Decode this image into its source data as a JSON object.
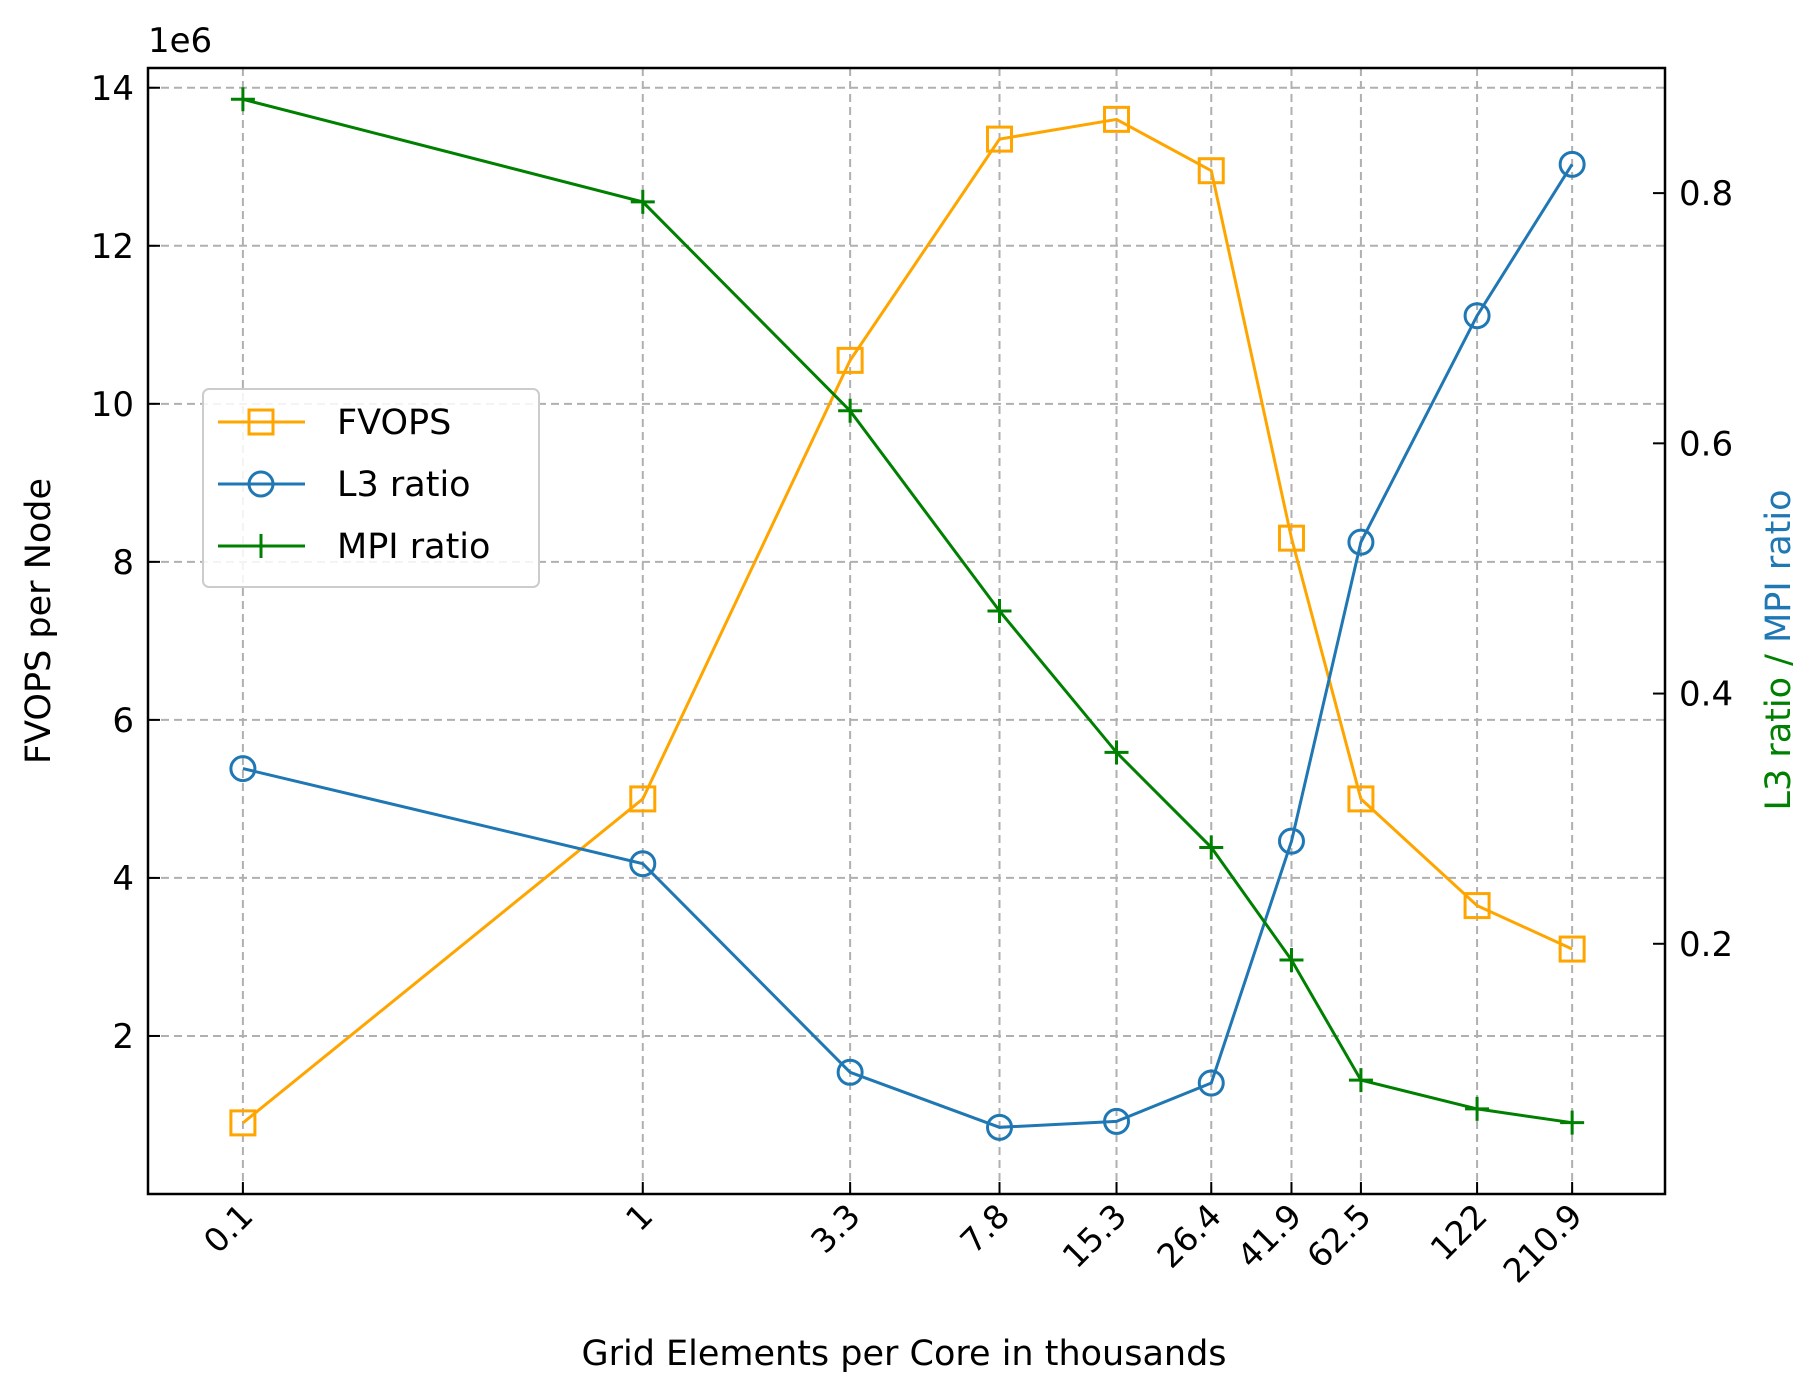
{
  "chart_data": {
    "type": "line",
    "xlabel": "Grid Elements per Core in thousands",
    "ylabel_left": "FVOPS per Node",
    "ylabel_right_part1": "L3 ratio / ",
    "ylabel_right_part2": " MPI ratio",
    "left_axis_multiplier": "1e6",
    "categories": [
      "0.1",
      "1",
      "3.3",
      "7.8",
      "15.3",
      "26.4",
      "41.9",
      "62.5",
      "122",
      "210.9"
    ],
    "x": [
      0.1,
      1,
      3.3,
      7.8,
      15.3,
      26.4,
      41.9,
      62.5,
      122,
      210.9
    ],
    "x_scale": "log",
    "x_range": [
      0.0579,
      360
    ],
    "y_left_range": [
      0,
      14.25
    ],
    "y_left_ticks": [
      2,
      4,
      6,
      8,
      10,
      12,
      14
    ],
    "y_right_range": [
      0.0,
      0.9
    ],
    "y_right_ticks": [
      "0.2",
      "0.4",
      "0.6",
      "0.8"
    ],
    "grid": true,
    "legend_position": "center-left",
    "series": [
      {
        "name": "FVOPS",
        "axis": "left",
        "color": "#ffa500",
        "marker": "square",
        "values": [
          0.9,
          5.0,
          10.55,
          13.35,
          13.6,
          12.95,
          8.3,
          5.0,
          3.65,
          3.1
        ]
      },
      {
        "name": "L3 ratio",
        "axis": "right",
        "color": "#1f77b4",
        "marker": "circle",
        "values": [
          0.34,
          0.264,
          0.0973,
          0.0533,
          0.058,
          0.0887,
          0.282,
          0.521,
          0.702,
          0.823
        ]
      },
      {
        "name": "MPI ratio",
        "axis": "right",
        "color": "#008000",
        "marker": "plus",
        "values": [
          0.875,
          0.793,
          0.626,
          0.466,
          0.353,
          0.277,
          0.187,
          0.091,
          0.068,
          0.057
        ]
      }
    ]
  }
}
